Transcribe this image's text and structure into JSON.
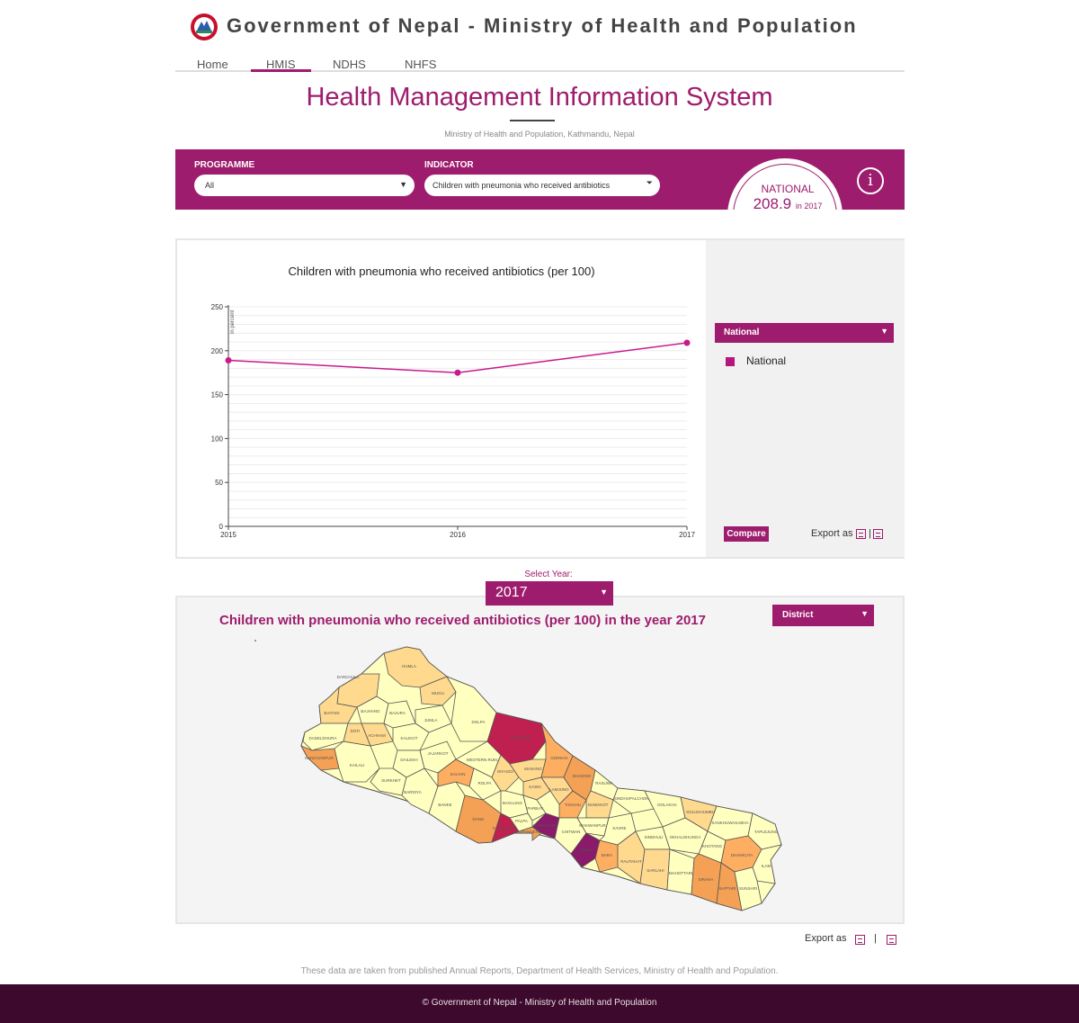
{
  "header": {
    "site_title": "Government of Nepal - Ministry of Health and Population"
  },
  "nav": {
    "items": [
      {
        "label": "Home",
        "active": false
      },
      {
        "label": "HMIS",
        "active": true
      },
      {
        "label": "NDHS",
        "active": false
      },
      {
        "label": "NHFS",
        "active": false
      }
    ]
  },
  "page": {
    "title": "Health Management Information System",
    "subtitle": "Ministry of Health and Population, Kathmandu, Nepal"
  },
  "filters": {
    "programme_label": "PROGRAMME",
    "programme_value": "All",
    "indicator_label": "INDICATOR",
    "indicator_value": "Children with pneumonia who received antibiotics",
    "national_label": "NATIONAL",
    "national_value": "208.9",
    "national_year": "in 2017",
    "info_icon": "i"
  },
  "chart_panel": {
    "region_select": "National",
    "legend_label": "National",
    "compare_label": "Compare",
    "export_label": "Export as",
    "export_separator": "|"
  },
  "chart_data": {
    "type": "line",
    "title": "Children with pneumonia who received antibiotics (per 100)",
    "ylabel": "in percent",
    "xlabel": "",
    "x": [
      "2015",
      "2016",
      "2017"
    ],
    "series": [
      {
        "name": "National",
        "values": [
          189,
          175,
          209
        ],
        "color": "#c81a8c"
      }
    ],
    "ylim": [
      0,
      250
    ],
    "yticks": [
      0,
      50,
      100,
      150,
      200,
      250
    ],
    "grid": true
  },
  "year_selector": {
    "label": "Select Year:",
    "value": "2017"
  },
  "map_panel": {
    "title": "Children with pneumonia who received antibiotics (per 100) in the year 2017",
    "level_select": "District",
    "district_labels": [
      "HUMLA",
      "DARCHULA",
      "BAJHANG",
      "BAITADI",
      "DADELDHURA",
      "DOTI",
      "KANCHANPUR",
      "KAILALI",
      "ACHHAM",
      "BAJURA",
      "MUGU",
      "JUMLA",
      "KALIKOT",
      "DAILEKH",
      "JAJARKOT",
      "SURKHET",
      "BARDIYA",
      "BANKE",
      "SALYAN",
      "ROLPA",
      "DANG",
      "DOLPA",
      "MUSTANG",
      "MANANG",
      "MYAGDI",
      "KASKI",
      "LAMJUNG",
      "GORKHA",
      "DHADING",
      "CHITWAN",
      "MAKWANPUR",
      "PARSA",
      "BARA",
      "SINDHULI",
      "UDAYAPUR",
      "ILAM",
      "TAPLEJUNG",
      "SANKHUWASABHA",
      "SOLUKHUMBU",
      "OKHALDHUNGA",
      "KHOTANG",
      "BHOJPUR",
      "DHANKUTA",
      "JHAPA",
      "MORANG",
      "SUNSARI",
      "SAPTARI",
      "SIRAHA",
      "DHANUSA",
      "MAHOTTARI",
      "SARLAHI",
      "RAUTAHAT",
      "KAVRE",
      "DOLAKHA",
      "RASUWA",
      "NAWALPARASI",
      "RUPANDEHI",
      "KAPILBASTU",
      "PALPA",
      "GULMI",
      "ARGHAKHANCHI",
      "PYUTHAN",
      "SYANGJA",
      "TANAHU",
      "PARBAT",
      "BAGLUNG",
      "RUKUM",
      "WESTERN RUKU"
    ],
    "legend_colors": [
      "#ffffbf",
      "#fed98e",
      "#fdae61",
      "#f4a155",
      "#ee7837",
      "#c0204f",
      "#8b1a6b"
    ]
  },
  "bottom": {
    "export_label": "Export as",
    "export_separator": "|",
    "source_note": "These data are taken from published Annual Reports, Department of Health Services, Ministry of Health and Population.",
    "footer": "© Government of Nepal - Ministry of Health and Population"
  }
}
